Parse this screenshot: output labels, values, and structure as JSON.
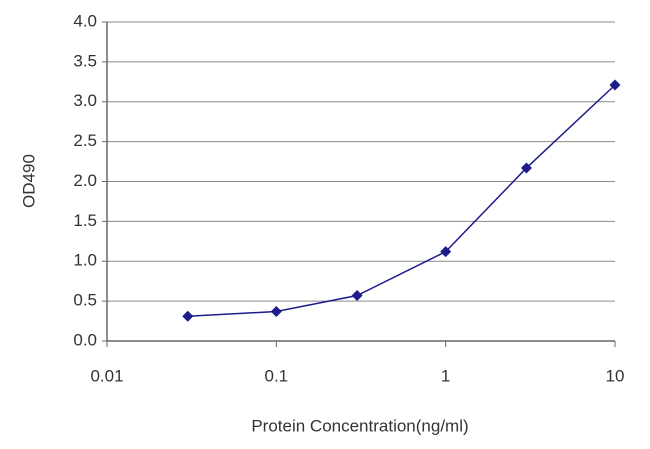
{
  "chart_data": {
    "type": "line",
    "x_label": "Protein Concentration(ng/ml)",
    "y_label": "OD490",
    "x": [
      0.03,
      0.1,
      0.3,
      1,
      3,
      10
    ],
    "values": [
      0.31,
      0.37,
      0.57,
      1.12,
      2.17,
      3.21
    ],
    "color": "#1c1c8a",
    "xscale": "log",
    "xlim": [
      0.01,
      10
    ],
    "xticks": [
      0.01,
      0.1,
      1,
      10
    ],
    "ylim": [
      0,
      4
    ],
    "yticks": [
      {
        "value": 0,
        "label": "0.0"
      },
      {
        "value": 0.5,
        "label": "0.5"
      },
      {
        "value": 1,
        "label": "1.0"
      },
      {
        "value": 1.5,
        "label": "1.5"
      },
      {
        "value": 2,
        "label": "2.0"
      },
      {
        "value": 2.5,
        "label": "2.5"
      },
      {
        "value": 3,
        "label": "3.0"
      },
      {
        "value": 3.5,
        "label": "3.5"
      },
      {
        "value": 4,
        "label": "4.0"
      }
    ],
    "grid": true
  }
}
